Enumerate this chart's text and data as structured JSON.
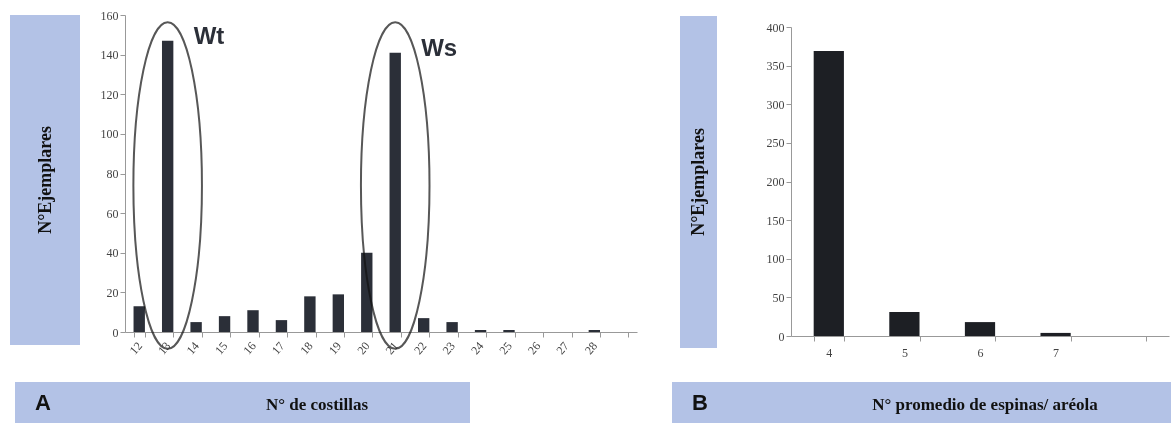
{
  "chart_data": [
    {
      "type": "bar",
      "xlabel": "N° de costillas",
      "ylabel": "N°Ejemplares",
      "categories": [
        "12",
        "13",
        "14",
        "15",
        "16",
        "17",
        "18",
        "19",
        "20",
        "21",
        "22",
        "23",
        "24",
        "25",
        "26",
        "27",
        "28",
        null
      ],
      "values": [
        13,
        147,
        5,
        8,
        11,
        6,
        18,
        19,
        40,
        141,
        7,
        5,
        1,
        1,
        0,
        0,
        1,
        null
      ],
      "color": "#2b2f38",
      "ylim": [
        0,
        160
      ],
      "yticks": [
        0,
        20,
        40,
        60,
        80,
        100,
        120,
        140,
        160
      ],
      "grid": false,
      "annotations": [
        {
          "text": "Wt",
          "x": "13",
          "y": 147
        },
        {
          "text": "Ws",
          "x": "21",
          "y": 141
        },
        "A"
      ]
    },
    {
      "type": "bar",
      "xlabel": "N° promedio de espinas/ aréola",
      "ylabel": "N°Ejemplares",
      "categories": [
        "4",
        "5",
        "6",
        "7",
        null
      ],
      "values": [
        369,
        31,
        18,
        4,
        null
      ],
      "color": "#1d1f24",
      "ylim": [
        0,
        400
      ],
      "yticks": [
        0,
        50,
        100,
        150,
        200,
        250,
        300,
        350,
        400
      ],
      "grid": false,
      "annotations": [
        "B"
      ]
    }
  ]
}
